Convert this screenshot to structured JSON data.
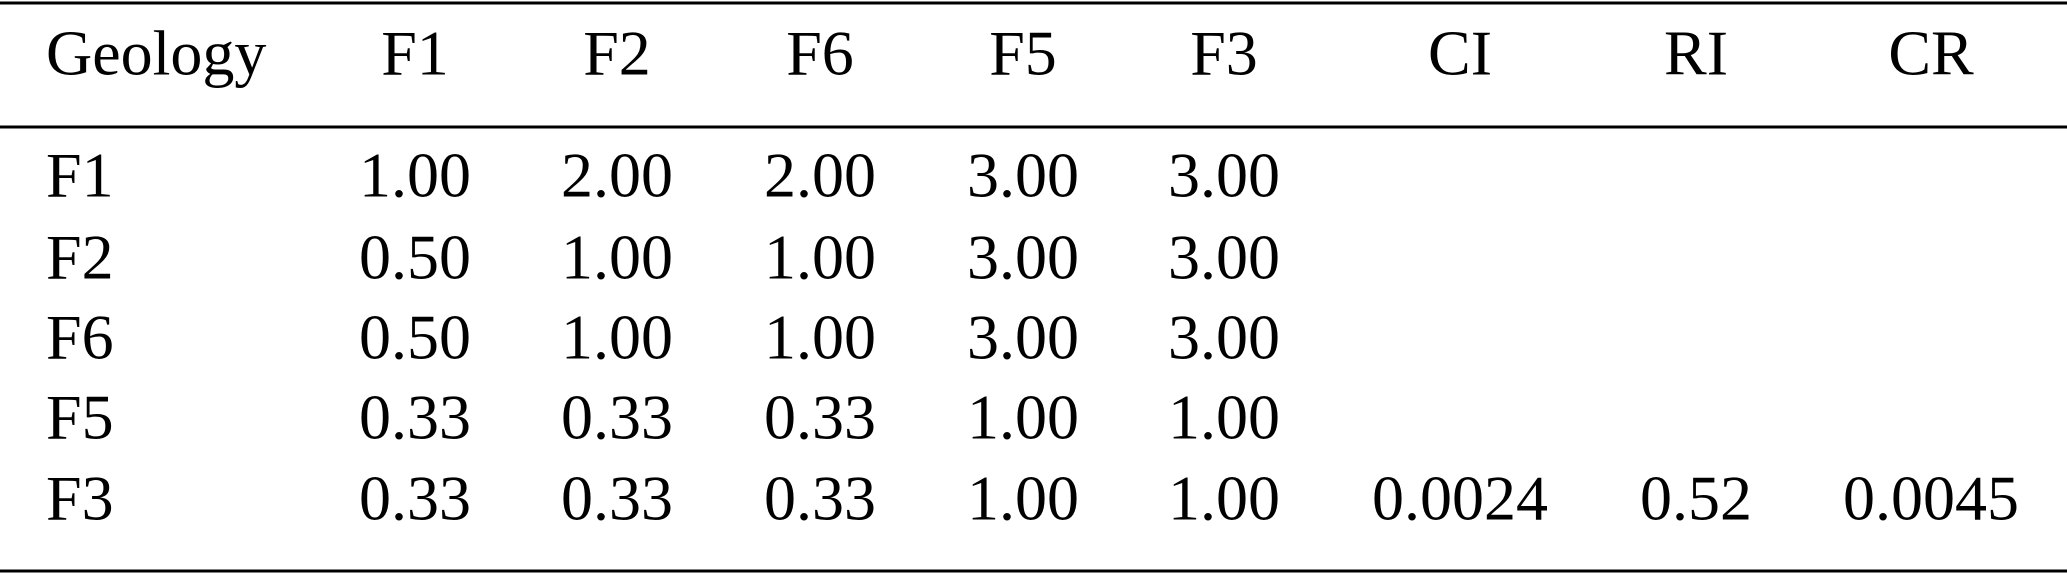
{
  "table": {
    "header": [
      "Geology",
      "F1",
      "F2",
      "F6",
      "F5",
      "F3",
      "CI",
      "RI",
      "CR"
    ],
    "rows": [
      [
        "F1",
        "1.00",
        "2.00",
        "2.00",
        "3.00",
        "3.00"
      ],
      [
        "F2",
        "0.50",
        "1.00",
        "1.00",
        "3.00",
        "3.00"
      ],
      [
        "F6",
        "0.50",
        "1.00",
        "1.00",
        "3.00",
        "3.00"
      ],
      [
        "F5",
        "0.33",
        "0.33",
        "0.33",
        "1.00",
        "1.00"
      ],
      [
        "F3",
        "0.33",
        "0.33",
        "0.33",
        "1.00",
        "1.00",
        "0.0024",
        "0.52",
        "0.0045"
      ]
    ]
  }
}
